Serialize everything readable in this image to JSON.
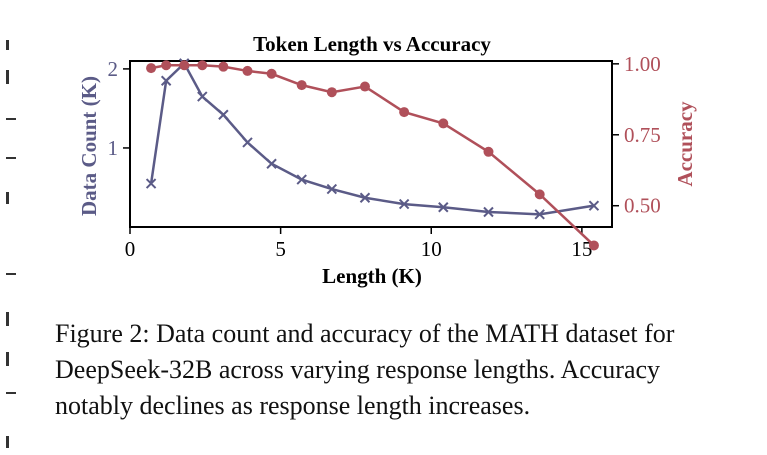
{
  "chart_data": {
    "type": "line",
    "title": "Token Length vs Accuracy",
    "xlabel": "Length (K)",
    "ylabel_left": "Data Count (K)",
    "ylabel_right": "Accuracy",
    "xlim": [
      0,
      16
    ],
    "ylim_left": [
      0,
      2.1
    ],
    "ylim_right": [
      0.425,
      1.01
    ],
    "xticks": [
      "0",
      "5",
      "10",
      "15"
    ],
    "yticks_left": [
      "1",
      "2"
    ],
    "yticks_right": [
      "0.50",
      "0.75",
      "1.00"
    ],
    "series": [
      {
        "axis": "left",
        "marker": "x",
        "color": "#5b5b87",
        "x": [
          0.7,
          1.2,
          1.8,
          2.4,
          3.1,
          3.9,
          4.7,
          5.7,
          6.7,
          7.8,
          9.1,
          10.4,
          11.9,
          13.6,
          15.4
        ],
        "y": [
          0.55,
          1.85,
          2.07,
          1.65,
          1.42,
          1.07,
          0.8,
          0.6,
          0.48,
          0.37,
          0.29,
          0.25,
          0.19,
          0.16,
          0.27
        ]
      },
      {
        "axis": "right",
        "marker": "o",
        "color": "#b0505a",
        "x": [
          0.7,
          1.2,
          1.8,
          2.4,
          3.1,
          3.9,
          4.7,
          5.7,
          6.7,
          7.8,
          9.1,
          10.4,
          11.9,
          13.6,
          15.4
        ],
        "y": [
          0.985,
          0.995,
          0.995,
          0.995,
          0.99,
          0.975,
          0.965,
          0.925,
          0.9,
          0.92,
          0.83,
          0.79,
          0.69,
          0.54,
          0.36
        ]
      }
    ]
  },
  "caption": "Figure 2: Data count and accuracy of the MATH dataset for DeepSeek-32B across varying response lengths. Accuracy notably declines as response length increases."
}
